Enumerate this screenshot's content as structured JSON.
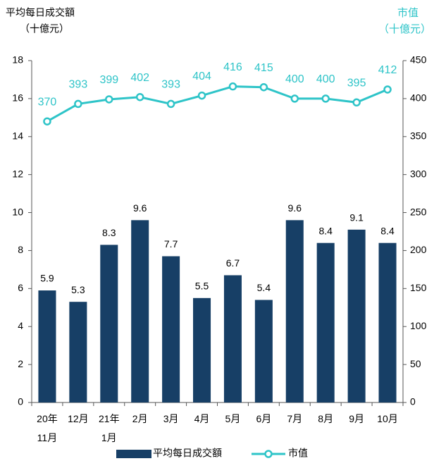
{
  "chart_data": {
    "type": "bar",
    "ylabel": [
      "平均每日成交額",
      "（十億元）"
    ],
    "y2label": [
      "市值",
      "（十億元）"
    ],
    "categories": [
      "20年\n11月",
      "12月",
      "21年\n1月",
      "2月",
      "3月",
      "4月",
      "5月",
      "6月",
      "7月",
      "8月",
      "9月",
      "10月"
    ],
    "series": [
      {
        "name": "平均每日成交額",
        "type": "bar",
        "color": "#173f66",
        "values": [
          5.9,
          5.3,
          8.3,
          9.6,
          7.7,
          5.5,
          6.7,
          5.4,
          9.6,
          8.4,
          9.1,
          8.4
        ]
      },
      {
        "name": "市值",
        "type": "line",
        "axis": "y2",
        "color": "#2ec4c8",
        "values": [
          370,
          393,
          399,
          402,
          393,
          404,
          416,
          415,
          400,
          400,
          395,
          412
        ]
      }
    ],
    "ylim": [
      0,
      18
    ],
    "yticks": [
      0,
      2,
      4,
      6,
      8,
      10,
      12,
      14,
      16,
      18
    ],
    "y2lim": [
      0,
      450
    ],
    "y2ticks": [
      0,
      50,
      100,
      150,
      200,
      250,
      300,
      350,
      400,
      450
    ],
    "legend": "bottom"
  }
}
